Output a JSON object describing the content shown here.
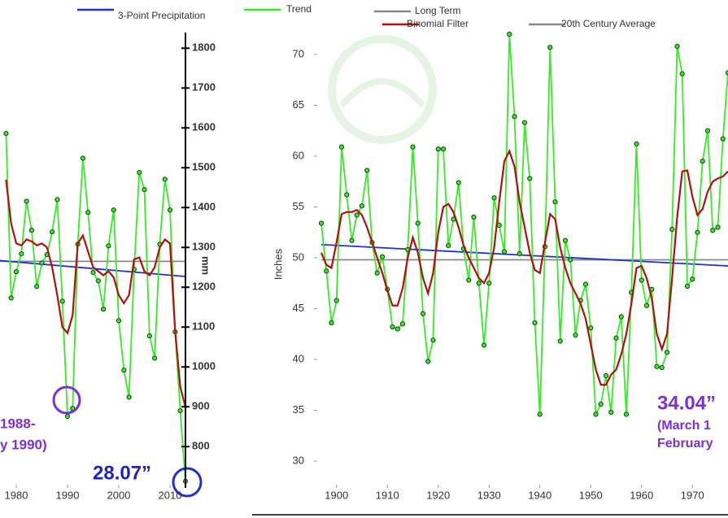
{
  "legend": {
    "items": [
      {
        "name": "3-Point Precipitation",
        "color": "#1f2fd0"
      },
      {
        "name": "Trend",
        "color": "#33ee22"
      },
      {
        "name": "Long Term",
        "color": "#888888"
      },
      {
        "name": "Binomial Filter",
        "color": "#b01010"
      },
      {
        "name": "20th Century Average",
        "color": "#888888"
      }
    ]
  },
  "chart_data": [
    {
      "type": "line",
      "ylabel": "mm",
      "xlim": [
        1976.8,
        2013.6
      ],
      "ylim": [
        680,
        1870
      ],
      "xticks": [
        1980,
        1990,
        2000,
        2010
      ],
      "yticks": [
        800,
        900,
        1000,
        1100,
        1200,
        1300,
        1400,
        1500,
        1600,
        1700,
        1800
      ],
      "series": [
        {
          "color": "#33ee22",
          "markers": true,
          "x": [
            1978,
            1979,
            1980,
            1981,
            1982,
            1983,
            1984,
            1985,
            1986,
            1987,
            1988,
            1989,
            1990,
            1991,
            1992,
            1993,
            1994,
            1995,
            1996,
            1997,
            1998,
            1999,
            2000,
            2001,
            2002,
            2003,
            2004,
            2005,
            2006,
            2007,
            2008,
            2009,
            2010,
            2011,
            2012,
            2013
          ],
          "values": [
            1586,
            1173,
            1239,
            1284,
            1416,
            1343,
            1202,
            1261,
            1282,
            1339,
            1420,
            1165,
            876,
            896,
            1308,
            1524,
            1388,
            1237,
            1216,
            1145,
            1304,
            1394,
            1116,
            992,
            924,
            1245,
            1488,
            1445,
            1078,
            1022,
            1308,
            1471,
            1394,
            1088,
            890,
            713
          ]
        },
        {
          "color": "#b01010",
          "markers": false,
          "x": [
            1978,
            1979,
            1980,
            1981,
            1982,
            1983,
            1984,
            1985,
            1986,
            1987,
            1988,
            1989,
            1990,
            1991,
            1992,
            1993,
            1994,
            1995,
            1996,
            1997,
            1998,
            1999,
            2000,
            2001,
            2002,
            2003,
            2004,
            2005,
            2006,
            2007,
            2008,
            2009,
            2010,
            2011,
            2012,
            2013
          ],
          "values": [
            1470,
            1360,
            1310,
            1305,
            1320,
            1315,
            1305,
            1310,
            1300,
            1250,
            1180,
            1100,
            1085,
            1130,
            1310,
            1330,
            1290,
            1250,
            1240,
            1230,
            1240,
            1225,
            1180,
            1160,
            1180,
            1270,
            1275,
            1240,
            1230,
            1250,
            1300,
            1320,
            1310,
            1090,
            950,
            900
          ]
        },
        {
          "color": "#1f2fd0",
          "markers": false,
          "x": [
            1976.8,
            2013
          ],
          "values": [
            1267,
            1227
          ]
        },
        {
          "color": "#888888",
          "markers": false,
          "x": [
            1976.8,
            2013
          ],
          "values": [
            1265,
            1265
          ]
        }
      ],
      "annotations": [
        "1988-",
        "y 1990)",
        "28.07”"
      ]
    },
    {
      "type": "line",
      "ylabel": "Inches",
      "xlim": [
        1897,
        1977
      ],
      "ylim": [
        28.16,
        72.16
      ],
      "xticks": [
        1900,
        1910,
        1920,
        1930,
        1940,
        1950,
        1960,
        1970
      ],
      "yticks": [
        30,
        35,
        40,
        45,
        50,
        55,
        60,
        65,
        70
      ],
      "series": [
        {
          "color": "#33ee22",
          "markers": true,
          "x": [
            1897,
            1898,
            1899,
            1900,
            1901,
            1902,
            1903,
            1904,
            1905,
            1906,
            1907,
            1908,
            1909,
            1910,
            1911,
            1912,
            1913,
            1914,
            1915,
            1916,
            1917,
            1918,
            1919,
            1920,
            1921,
            1922,
            1923,
            1924,
            1925,
            1926,
            1927,
            1928,
            1929,
            1930,
            1931,
            1932,
            1933,
            1934,
            1935,
            1936,
            1937,
            1938,
            1939,
            1940,
            1941,
            1942,
            1943,
            1944,
            1945,
            1946,
            1947,
            1948,
            1949,
            1950,
            1951,
            1952,
            1953,
            1954,
            1955,
            1956,
            1957,
            1958,
            1959,
            1960,
            1961,
            1962,
            1963,
            1964,
            1965,
            1966,
            1967,
            1968,
            1969,
            1970,
            1971,
            1972,
            1973,
            1974,
            1975,
            1976,
            1977
          ],
          "values": [
            53.4,
            48.7,
            43.6,
            45.8,
            60.9,
            56.2,
            51.7,
            54.2,
            55.1,
            58.6,
            51.5,
            48.5,
            50.1,
            46.9,
            43.2,
            43.0,
            43.5,
            50.8,
            60.9,
            53.4,
            44.5,
            39.8,
            41.9,
            60.7,
            60.7,
            51.2,
            53.8,
            57.4,
            50.9,
            47.8,
            54.0,
            47.5,
            41.4,
            47.5,
            55.9,
            53.2,
            50.6,
            72.0,
            63.9,
            50.4,
            63.3,
            57.8,
            43.6,
            34.6,
            51.1,
            70.7,
            55.5,
            41.8,
            51.7,
            49.8,
            42.4,
            45.8,
            47.4,
            43.1,
            34.6,
            35.6,
            38.4,
            34.8,
            42.1,
            44.2,
            34.6,
            46.6,
            61.2,
            47.8,
            45.3,
            46.9,
            39.3,
            39.2,
            40.7,
            52.8,
            70.8,
            68.1,
            47.2,
            47.9,
            52.5,
            59.5,
            62.5,
            52.7,
            53.0,
            61.7,
            68.2
          ]
        },
        {
          "color": "#b01010",
          "markers": false,
          "x": [
            1897,
            1898,
            1899,
            1900,
            1901,
            1902,
            1903,
            1904,
            1905,
            1906,
            1907,
            1908,
            1909,
            1910,
            1911,
            1912,
            1913,
            1914,
            1915,
            1916,
            1917,
            1918,
            1919,
            1920,
            1921,
            1922,
            1923,
            1924,
            1925,
            1926,
            1927,
            1928,
            1929,
            1930,
            1931,
            1932,
            1933,
            1934,
            1935,
            1936,
            1937,
            1938,
            1939,
            1940,
            1941,
            1942,
            1943,
            1944,
            1945,
            1946,
            1947,
            1948,
            1949,
            1950,
            1951,
            1952,
            1953,
            1954,
            1955,
            1956,
            1957,
            1958,
            1959,
            1960,
            1961,
            1962,
            1963,
            1964,
            1965,
            1966,
            1967,
            1968,
            1969,
            1970,
            1971,
            1972,
            1973,
            1974,
            1975,
            1976,
            1977
          ],
          "values": [
            50.5,
            49.3,
            49.0,
            51.5,
            54.3,
            54.5,
            54.5,
            54.7,
            54.2,
            53.0,
            51.5,
            50.0,
            48.5,
            46.8,
            45.3,
            45.3,
            47.0,
            50.0,
            52.0,
            50.5,
            48.0,
            46.5,
            48.5,
            52.5,
            55.0,
            55.3,
            54.5,
            53.0,
            51.2,
            50.0,
            49.0,
            48.0,
            47.5,
            48.5,
            51.0,
            55.5,
            59.5,
            60.5,
            59.0,
            55.5,
            53.0,
            50.5,
            48.8,
            48.5,
            51.5,
            54.3,
            53.8,
            51.0,
            49.0,
            47.5,
            46.5,
            45.5,
            44.0,
            41.5,
            39.0,
            37.5,
            37.5,
            38.5,
            39.0,
            40.5,
            42.5,
            45.5,
            49.0,
            49.2,
            48.0,
            46.0,
            42.5,
            41.0,
            42.5,
            48.0,
            54.0,
            58.5,
            58.6,
            56.0,
            54.2,
            54.8,
            56.5,
            57.5,
            57.8,
            58.0,
            58.5
          ]
        },
        {
          "color": "#1f2fd0",
          "markers": false,
          "x": [
            1897,
            1977
          ],
          "values": [
            51.3,
            49.2
          ]
        },
        {
          "color": "#888888",
          "markers": false,
          "x": [
            1897,
            1977
          ],
          "values": [
            49.8,
            49.8
          ]
        }
      ],
      "annotations": [
        "34.04”",
        "(March 1",
        "February"
      ]
    }
  ]
}
